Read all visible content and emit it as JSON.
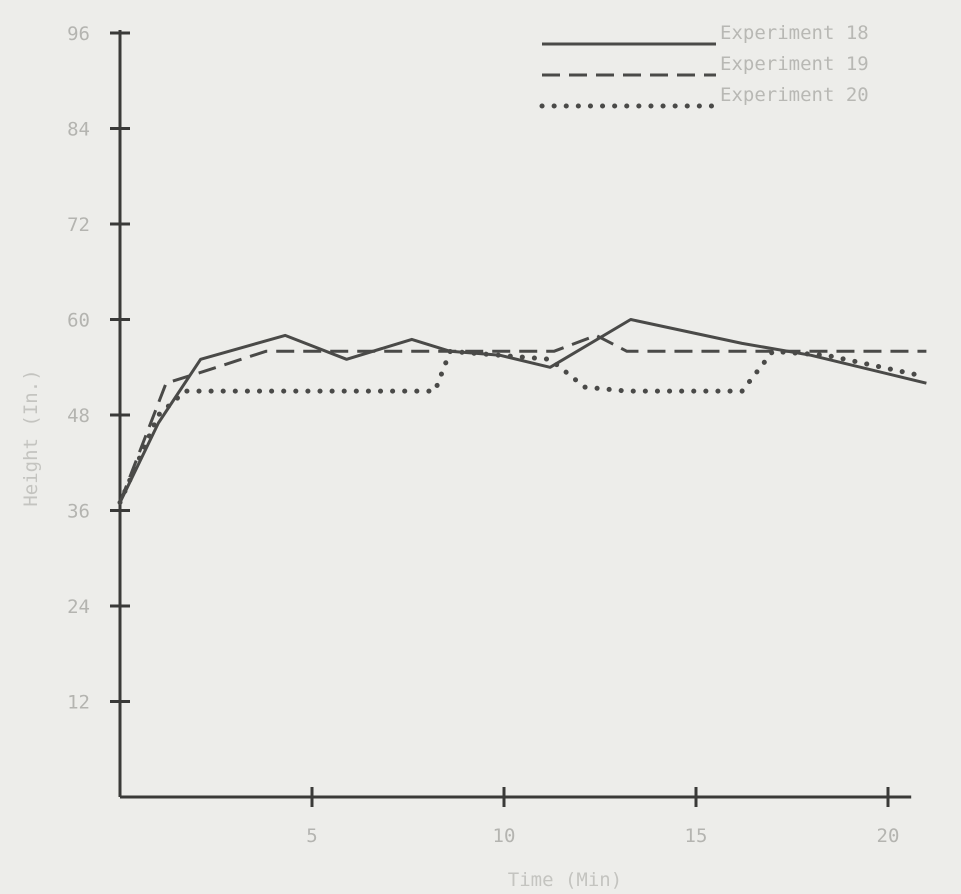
{
  "chart_data": {
    "type": "line",
    "title": "",
    "xlabel": "Time (Min)",
    "ylabel": "Height (In.)",
    "xlim": [
      0,
      20.5
    ],
    "ylim": [
      0,
      96
    ],
    "xticks": [
      5,
      10,
      15,
      20
    ],
    "yticks": [
      12,
      24,
      36,
      48,
      60,
      72,
      84,
      96
    ],
    "grid": false,
    "legend_position": "top-right",
    "axis_color": "#3a3a38",
    "series_color": "#4a4a48",
    "series": [
      {
        "name": "Experiment 18",
        "style": "solid",
        "points": [
          [
            0,
            37
          ],
          [
            1.0,
            47
          ],
          [
            2.1,
            55
          ],
          [
            4.3,
            58
          ],
          [
            5.9,
            55
          ],
          [
            7.6,
            57.5
          ],
          [
            8.6,
            56
          ],
          [
            9.9,
            55.5
          ],
          [
            11.2,
            54
          ],
          [
            13.3,
            60
          ],
          [
            16.2,
            57
          ],
          [
            18.0,
            55.5
          ],
          [
            21.0,
            52
          ]
        ]
      },
      {
        "name": "Experiment 19",
        "style": "dashed",
        "points": [
          [
            0,
            37
          ],
          [
            1.2,
            52
          ],
          [
            2.2,
            53.5
          ],
          [
            3.8,
            56
          ],
          [
            6.0,
            56
          ],
          [
            8.8,
            56
          ],
          [
            10.0,
            56
          ],
          [
            11.3,
            56
          ],
          [
            12.4,
            58
          ],
          [
            13.2,
            56
          ],
          [
            16.0,
            56
          ],
          [
            21.0,
            56
          ]
        ]
      },
      {
        "name": "Experiment 20",
        "style": "dotted",
        "points": [
          [
            0,
            37
          ],
          [
            1.0,
            48
          ],
          [
            1.7,
            51
          ],
          [
            3.4,
            51
          ],
          [
            5.8,
            51
          ],
          [
            8.2,
            51
          ],
          [
            8.6,
            56
          ],
          [
            11.2,
            55
          ],
          [
            12.1,
            51.5
          ],
          [
            13.2,
            51
          ],
          [
            16.2,
            51
          ],
          [
            17.0,
            56
          ],
          [
            18.4,
            55.5
          ],
          [
            20.8,
            53
          ]
        ]
      }
    ]
  }
}
